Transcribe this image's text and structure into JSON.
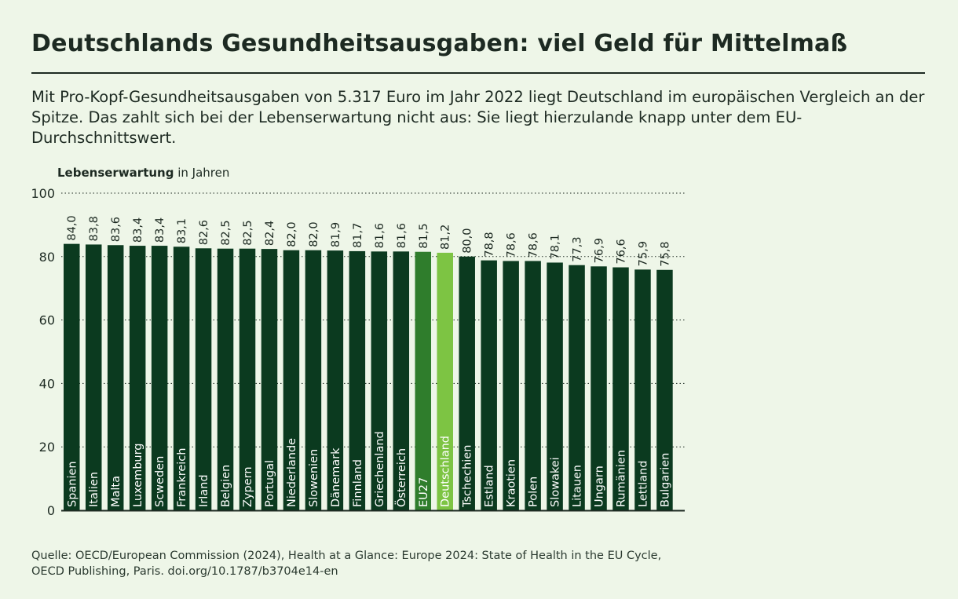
{
  "title": "Deutschlands Gesundheitsausgaben: viel Geld für Mittelmaß",
  "subtitle": "Mit Pro-Kopf-Gesundheitsausgaben von 5.317 Euro im Jahr 2022 liegt Deutschland im europäischen Vergleich an der Spitze. Das zahlt sich bei der Lebenserwartung nicht aus: Sie liegt hierzulande knapp unter dem EU-Durchschnittswert.",
  "y_axis_label_bold": "Lebenserwartung",
  "y_axis_label_rest": " in Jahren",
  "source_line1": "Quelle: OECD/European Commission (2024), Health at a Glance: Europe 2024: State of Health in the EU Cycle,",
  "source_line2": "OECD Publishing, Paris. doi.org/10.1787/b3704e14-en",
  "colors": {
    "default_bar": "#0b3a1f",
    "eu_bar": "#2f7d2c",
    "germany_bar": "#7dc443",
    "grid": "#1d2a22"
  },
  "chart_data": {
    "type": "bar",
    "title": "Deutschlands Gesundheitsausgaben: viel Geld für Mittelmaß",
    "ylabel": "Lebenserwartung in Jahren",
    "xlabel": "",
    "ylim": [
      0,
      100
    ],
    "yticks": [
      "0",
      "20",
      "40",
      "60",
      "80",
      "100"
    ],
    "grid": true,
    "categories": [
      "Spanien",
      "Italien",
      "Malta",
      "Luxemburg",
      "Scweden",
      "Frankreich",
      "Irland",
      "Belgien",
      "Zypern",
      "Portugal",
      "Niederlande",
      "Slowenien",
      "Dänemark",
      "Finnland",
      "Griechenland",
      "Österreich",
      "EU27",
      "Deutschland",
      "Tschechien",
      "Estland",
      "Kraotien",
      "Polen",
      "Slowakei",
      "Litauen",
      "Ungarn",
      "Rumänien",
      "Lettland",
      "Bulgarien"
    ],
    "values": [
      84.0,
      83.8,
      83.6,
      83.4,
      83.4,
      83.1,
      82.6,
      82.5,
      82.5,
      82.4,
      82.0,
      82.0,
      81.9,
      81.7,
      81.6,
      81.6,
      81.5,
      81.2,
      80.0,
      78.8,
      78.6,
      78.6,
      78.1,
      77.3,
      76.9,
      76.6,
      75.9,
      75.8
    ],
    "value_labels": [
      "84,0",
      "83,8",
      "83,6",
      "83,4",
      "83,4",
      "83,1",
      "82,6",
      "82,5",
      "82,5",
      "82,4",
      "82,0",
      "82,0",
      "81,9",
      "81,7",
      "81,6",
      "81,6",
      "81,5",
      "81,2",
      "80,0",
      "78,8",
      "78,6",
      "78,6",
      "78,1",
      "77,3",
      "76,9",
      "76,6",
      "75,9",
      "75,8"
    ],
    "highlight": {
      "EU27": "eu_bar",
      "Deutschland": "germany_bar"
    }
  }
}
